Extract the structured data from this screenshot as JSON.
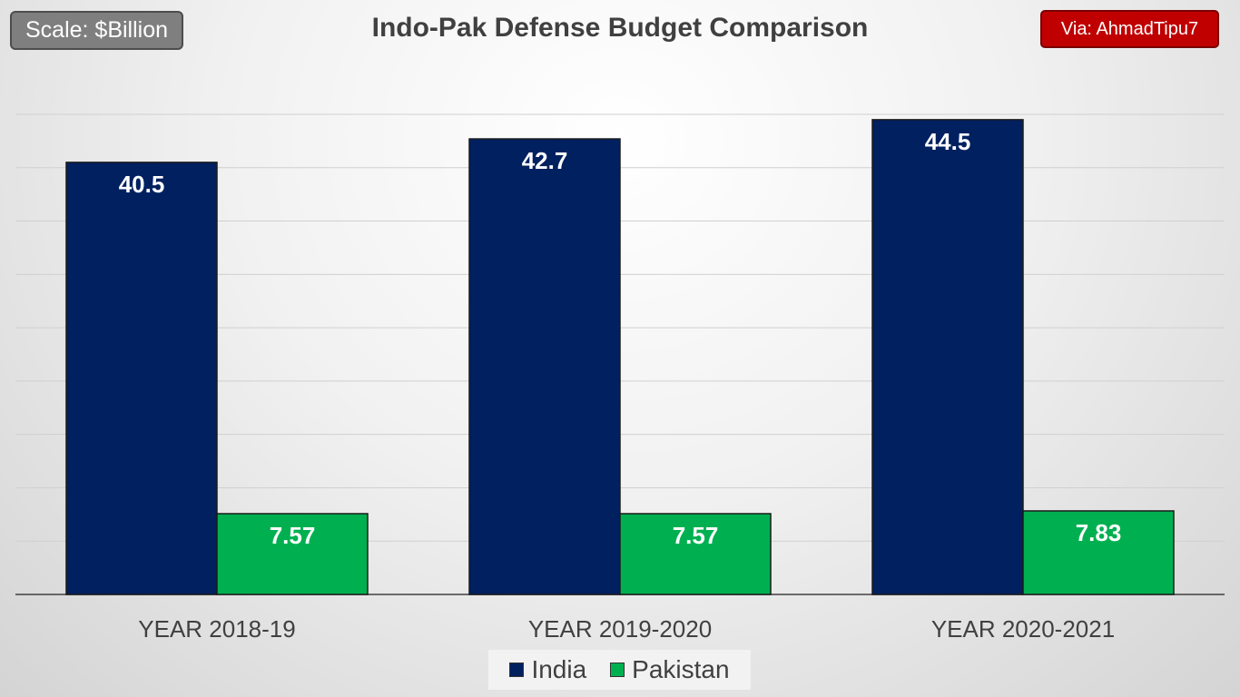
{
  "header": {
    "scale_label": "Scale: $Billion",
    "title": "Indo-Pak Defense Budget Comparison",
    "via_label": "Via: AhmadTipu7"
  },
  "colors": {
    "india": "#002060",
    "pakistan": "#00b050",
    "via_badge": "#c00000",
    "scale_badge": "#7f7f7f"
  },
  "chart_data": {
    "type": "bar",
    "title": "Indo-Pak Defense Budget Comparison",
    "categories": [
      "YEAR 2018-19",
      "YEAR 2019-2020",
      "YEAR 2020-2021"
    ],
    "series": [
      {
        "name": "India",
        "values": [
          40.5,
          42.7,
          44.5
        ],
        "labels": [
          "40.5",
          "42.7",
          "44.5"
        ]
      },
      {
        "name": "Pakistan",
        "values": [
          7.57,
          7.57,
          7.83
        ],
        "labels": [
          "7.57",
          "7.57",
          "7.83"
        ]
      }
    ],
    "ylim": [
      0,
      45
    ],
    "y_axis_visible": false,
    "grid": true,
    "legend": "bottom",
    "data_labels": true
  }
}
